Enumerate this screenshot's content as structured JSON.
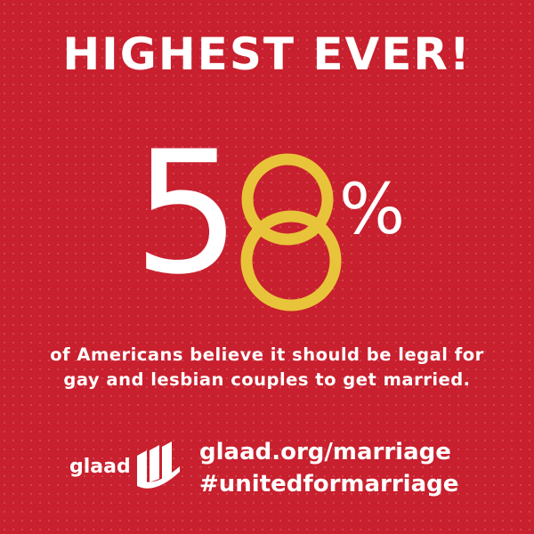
{
  "headline": "HIGHEST EVER!",
  "statistic": {
    "digit_five": "5",
    "digit_eight": "8",
    "percent_sign": "%"
  },
  "caption": {
    "line1": "of Americans believe it should be legal for",
    "line2": "gay and lesbian couples to get married."
  },
  "footer": {
    "logo_text": "glaad",
    "url": "glaad.org/marriage",
    "hashtag": "#unitedformarriage"
  },
  "colors": {
    "background": "#c8202e",
    "text": "#ffffff",
    "rings": "#e8c43a"
  },
  "icons": [
    "wedding-rings-icon",
    "glaad-logo-icon"
  ]
}
